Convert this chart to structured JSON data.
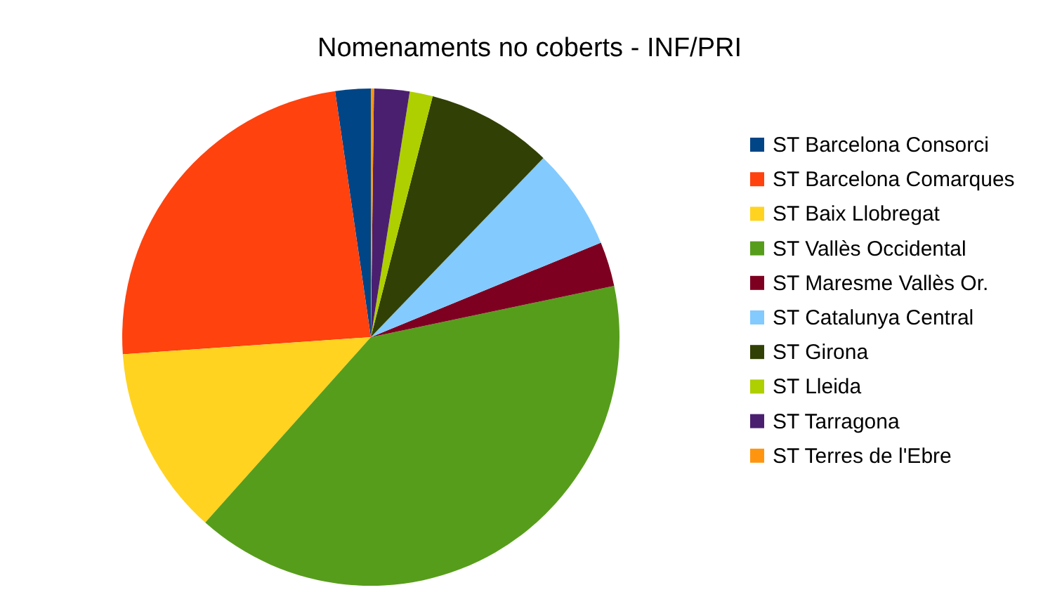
{
  "chart_data": {
    "type": "pie",
    "title": "Nomenaments no coberts - INF/PRI",
    "categories": [
      "ST Barcelona Consorci",
      "ST Barcelona Comarques",
      "ST Baix Llobregat",
      "ST Vallès Occidental",
      "ST Maresme Vallès Or.",
      "ST Catalunya Central",
      "ST Girona",
      "ST Lleida",
      "ST Tarragona",
      "ST Terres de l'Ebre"
    ],
    "values": [
      2.3,
      23.8,
      12.3,
      39.9,
      2.9,
      6.6,
      8.2,
      1.5,
      2.3,
      0.2
    ],
    "colors": [
      "#004586",
      "#ff420e",
      "#ffd320",
      "#579d1c",
      "#7e0021",
      "#83caff",
      "#314004",
      "#aecf00",
      "#4b1f6f",
      "#ff950e"
    ],
    "legend": "right"
  }
}
